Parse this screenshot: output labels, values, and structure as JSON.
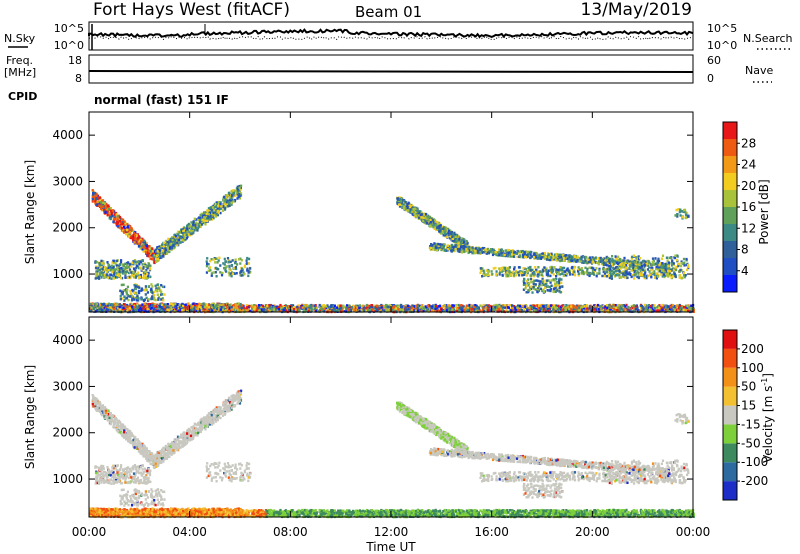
{
  "header": {
    "station": "Fort Hays West (fitACF)",
    "beam": "Beam 01",
    "date": "13/May/2019"
  },
  "noise_panel": {
    "left_label": "N.Sky",
    "right_label": "N.Search",
    "left_ticks": [
      "10^5",
      "10^0"
    ],
    "right_ticks": [
      "10^5",
      "10^0"
    ]
  },
  "freq_panel": {
    "left_label_1": "Freq.",
    "left_label_2": "[MHz]",
    "left_ticks": [
      "18",
      "8"
    ],
    "right_label": "Nave",
    "right_ticks": [
      "60",
      "0"
    ]
  },
  "cpid": {
    "label": "CPID",
    "mode": "normal (fast) 151 IF"
  },
  "chart_data": [
    {
      "type": "heatmap",
      "name": "power",
      "ylabel": "Slant Range [km]",
      "ylim": [
        180,
        4500
      ],
      "yticks": [
        1000,
        2000,
        3000,
        4000
      ],
      "xlim_hours": [
        0,
        24
      ],
      "colorbar": {
        "label": "Power [dB]",
        "range": [
          0,
          32
        ],
        "ticks": [
          4,
          8,
          12,
          16,
          20,
          24,
          28
        ],
        "colors": [
          "#0a1dff",
          "#1f4fc2",
          "#30609a",
          "#3c8a86",
          "#5fa05a",
          "#a8c23a",
          "#f2cc1e",
          "#f29a18",
          "#ee5a12",
          "#e81818"
        ]
      }
    },
    {
      "type": "heatmap",
      "name": "velocity",
      "ylabel": "Slant Range [km]",
      "ylim": [
        180,
        4500
      ],
      "yticks": [
        1000,
        2000,
        3000,
        4000
      ],
      "xlim_hours": [
        0,
        24
      ],
      "xticks": [
        "00:00",
        "04:00",
        "08:00",
        "12:00",
        "16:00",
        "20:00",
        "00:00"
      ],
      "xlabel": "Time UT",
      "colorbar": {
        "label": "Velocity [m s^-1]",
        "ticks": [
          200,
          100,
          50,
          15,
          -15,
          -50,
          -100,
          -200
        ],
        "colors": [
          "#1d2ec8",
          "#2d6aa0",
          "#3c8a5e",
          "#7ed03a",
          "#c8c8c0",
          "#f2c030",
          "#f29018",
          "#f25010",
          "#e01010"
        ]
      }
    }
  ]
}
